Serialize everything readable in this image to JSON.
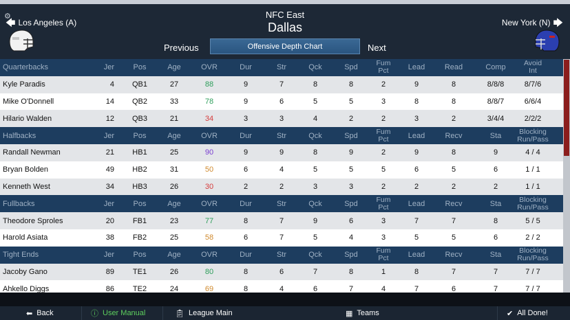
{
  "header": {
    "division": "NFC East",
    "team": "Dallas",
    "prev_team": "Los Angeles (A)",
    "next_team": "New York (N)",
    "previous_label": "Previous",
    "next_label": "Next",
    "chart_button": "Offensive Depth Chart"
  },
  "groups": [
    {
      "name": "Quarterbacks",
      "cols": [
        "Jer",
        "Pos",
        "Age",
        "OVR",
        "Dur",
        "Str",
        "Qck",
        "Spd",
        "Fum\nPct",
        "Lead",
        "Read",
        "Comp",
        "Avoid\nInt"
      ],
      "players": [
        {
          "name": "Kyle Paradis",
          "jer": "4",
          "pos": "QB1",
          "age": "27",
          "ovr": "88",
          "ovr_color": "green",
          "dur": "9",
          "str": "7",
          "qck": "8",
          "spd": "8",
          "fum": "2",
          "lead": "9",
          "x": "8",
          "y": "8/8/8",
          "z": "8/7/6"
        },
        {
          "name": "Mike O'Donnell",
          "jer": "14",
          "pos": "QB2",
          "age": "33",
          "ovr": "78",
          "ovr_color": "green",
          "dur": "9",
          "str": "6",
          "qck": "5",
          "spd": "5",
          "fum": "3",
          "lead": "8",
          "x": "8",
          "y": "8/8/7",
          "z": "6/6/4"
        },
        {
          "name": "Hilario Walden",
          "jer": "12",
          "pos": "QB3",
          "age": "21",
          "ovr": "34",
          "ovr_color": "red",
          "dur": "3",
          "str": "3",
          "qck": "4",
          "spd": "2",
          "fum": "2",
          "lead": "3",
          "x": "2",
          "y": "3/4/4",
          "z": "2/2/2"
        }
      ]
    },
    {
      "name": "Halfbacks",
      "cols": [
        "Jer",
        "Pos",
        "Age",
        "OVR",
        "Dur",
        "Str",
        "Qck",
        "Spd",
        "Fum\nPct",
        "Lead",
        "Recv",
        "Sta",
        "Blocking\nRun/Pass"
      ],
      "players": [
        {
          "name": "Randall Newman",
          "jer": "21",
          "pos": "HB1",
          "age": "25",
          "ovr": "90",
          "ovr_color": "purple",
          "dur": "9",
          "str": "9",
          "qck": "8",
          "spd": "9",
          "fum": "2",
          "lead": "9",
          "x": "8",
          "y": "9",
          "z": "4 / 4"
        },
        {
          "name": "Bryan Bolden",
          "jer": "49",
          "pos": "HB2",
          "age": "31",
          "ovr": "50",
          "ovr_color": "orange",
          "dur": "6",
          "str": "4",
          "qck": "5",
          "spd": "5",
          "fum": "5",
          "lead": "6",
          "x": "5",
          "y": "6",
          "z": "1 / 1"
        },
        {
          "name": "Kenneth West",
          "jer": "34",
          "pos": "HB3",
          "age": "26",
          "ovr": "30",
          "ovr_color": "red",
          "dur": "2",
          "str": "2",
          "qck": "3",
          "spd": "3",
          "fum": "2",
          "lead": "2",
          "x": "2",
          "y": "2",
          "z": "1 / 1"
        }
      ]
    },
    {
      "name": "Fullbacks",
      "cols": [
        "Jer",
        "Pos",
        "Age",
        "OVR",
        "Dur",
        "Str",
        "Qck",
        "Spd",
        "Fum\nPct",
        "Lead",
        "Recv",
        "Sta",
        "Blocking\nRun/Pass"
      ],
      "players": [
        {
          "name": "Theodore Sproles",
          "jer": "20",
          "pos": "FB1",
          "age": "23",
          "ovr": "77",
          "ovr_color": "green",
          "dur": "8",
          "str": "7",
          "qck": "9",
          "spd": "6",
          "fum": "3",
          "lead": "7",
          "x": "7",
          "y": "8",
          "z": "5 / 5"
        },
        {
          "name": "Harold Asiata",
          "jer": "38",
          "pos": "FB2",
          "age": "25",
          "ovr": "58",
          "ovr_color": "orange",
          "dur": "6",
          "str": "7",
          "qck": "5",
          "spd": "4",
          "fum": "3",
          "lead": "5",
          "x": "5",
          "y": "6",
          "z": "2 / 2"
        }
      ]
    },
    {
      "name": "Tight Ends",
      "cols": [
        "Jer",
        "Pos",
        "Age",
        "OVR",
        "Dur",
        "Str",
        "Qck",
        "Spd",
        "Fum\nPct",
        "Lead",
        "Recv",
        "Sta",
        "Blocking\nRun/Pass"
      ],
      "players": [
        {
          "name": "Jacoby Gano",
          "jer": "89",
          "pos": "TE1",
          "age": "26",
          "ovr": "80",
          "ovr_color": "green",
          "dur": "8",
          "str": "6",
          "qck": "7",
          "spd": "8",
          "fum": "1",
          "lead": "8",
          "x": "7",
          "y": "7",
          "z": "7 / 7"
        },
        {
          "name": "Ahkello Diggs",
          "jer": "86",
          "pos": "TE2",
          "age": "24",
          "ovr": "69",
          "ovr_color": "orange",
          "dur": "8",
          "str": "4",
          "qck": "6",
          "spd": "7",
          "fum": "4",
          "lead": "7",
          "x": "6",
          "y": "7",
          "z": "7 / 7"
        }
      ]
    }
  ],
  "footer": {
    "back": "Back",
    "manual": "User Manual",
    "league": "League Main",
    "teams": "Teams",
    "done": "All Done!"
  },
  "icons": {
    "back": "back-arrow-icon",
    "manual": "info-icon",
    "league": "clipboard-icon",
    "teams": "teams-icon",
    "done": "checkmark-icon"
  }
}
